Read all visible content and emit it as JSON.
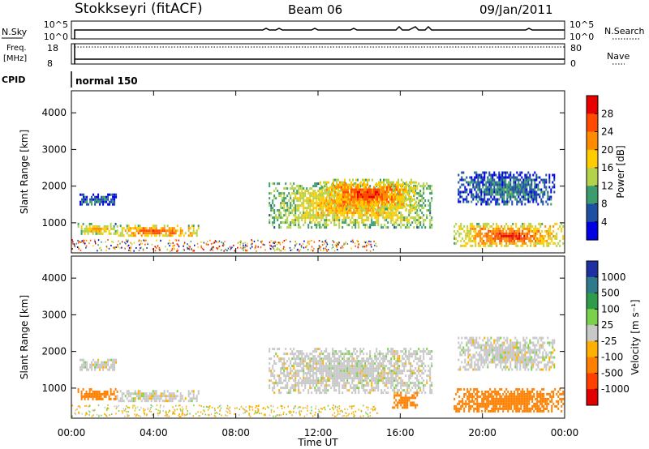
{
  "header": {
    "station": "Stokkseyri (fitACF)",
    "beam": "Beam 06",
    "date": "09/Jan/2011"
  },
  "status": {
    "nsky_label": "N.Sky",
    "nsky_ticks": [
      "10^5",
      "10^0"
    ],
    "nsearch_label": "N.Search",
    "nsearch_ticks": [
      "10^5",
      "10^0"
    ],
    "freq_label_1": "Freq.",
    "freq_label_2": "[MHz]",
    "freq_ticks": [
      "18",
      "8"
    ],
    "nave_label": "Nave",
    "nave_ticks": [
      "80",
      "0"
    ],
    "cpid_label": "CPID",
    "cpid_value": "normal 150"
  },
  "chart_data": [
    {
      "type": "heatmap",
      "name": "power",
      "ylabel": "Slant Range [km]",
      "xlabel": "Time UT",
      "xlim": [
        0,
        24
      ],
      "ylim": [
        180,
        4600
      ],
      "yticks": [
        "1000",
        "2000",
        "3000",
        "4000"
      ],
      "xticks": [
        "00:00",
        "04:00",
        "08:00",
        "12:00",
        "16:00",
        "20:00",
        "00:00"
      ],
      "colorbar_label": "Power [dB]",
      "colorbar_ticks": [
        "28",
        "24",
        "20",
        "16",
        "12",
        "8",
        "4"
      ],
      "colorbar_colors": [
        "#e60000",
        "#ff4a00",
        "#ff8c00",
        "#ffcc00",
        "#b4d24a",
        "#3c9c6e",
        "#1e4fa0",
        "#0000e0"
      ],
      "echo_regions": [
        {
          "t": [
            0.3,
            2.2
          ],
          "r": [
            700,
            1000
          ],
          "level": 20
        },
        {
          "t": [
            0.4,
            2.2
          ],
          "r": [
            1500,
            1800
          ],
          "level": 8
        },
        {
          "t": [
            2.2,
            6.2
          ],
          "r": [
            650,
            950
          ],
          "level": 26
        },
        {
          "t": [
            9.6,
            17.5
          ],
          "r": [
            900,
            2100
          ],
          "level": 20
        },
        {
          "t": [
            12.0,
            16.8
          ],
          "r": [
            1400,
            2200
          ],
          "level": 26
        },
        {
          "t": [
            18.6,
            23.9
          ],
          "r": [
            350,
            1000
          ],
          "level": 26
        },
        {
          "t": [
            18.8,
            23.5
          ],
          "r": [
            1500,
            2400
          ],
          "level": 8
        }
      ]
    },
    {
      "type": "heatmap",
      "name": "velocity",
      "ylabel": "Slant Range [km]",
      "xlabel": "Time UT",
      "xlim": [
        0,
        24
      ],
      "ylim": [
        180,
        4600
      ],
      "yticks": [
        "1000",
        "2000",
        "3000",
        "4000"
      ],
      "xticks": [
        "00:00",
        "04:00",
        "08:00",
        "12:00",
        "16:00",
        "20:00",
        "00:00"
      ],
      "colorbar_label": "Velocity [m s⁻¹]",
      "colorbar_ticks": [
        "1000",
        "500",
        "100",
        "25",
        "-25",
        "-100",
        "-500",
        "-1000"
      ],
      "colorbar_colors": [
        "#1e2fa0",
        "#2e7a8a",
        "#2e9c4a",
        "#7ad24a",
        "#c8c8c8",
        "#ffb000",
        "#ff8000",
        "#ff4000",
        "#e00000"
      ],
      "echo_regions": [
        {
          "t": [
            0.3,
            2.2
          ],
          "r": [
            700,
            1000
          ],
          "velocity": -200
        },
        {
          "t": [
            0.4,
            2.2
          ],
          "r": [
            1500,
            1800
          ],
          "velocity": 0
        },
        {
          "t": [
            2.2,
            6.2
          ],
          "r": [
            650,
            950
          ],
          "velocity": 0
        },
        {
          "t": [
            9.6,
            17.5
          ],
          "r": [
            900,
            2100
          ],
          "velocity": 0
        },
        {
          "t": [
            15.6,
            16.8
          ],
          "r": [
            500,
            900
          ],
          "velocity": -300
        },
        {
          "t": [
            18.6,
            23.9
          ],
          "r": [
            350,
            1000
          ],
          "velocity": -300
        },
        {
          "t": [
            18.8,
            23.5
          ],
          "r": [
            1500,
            2400
          ],
          "velocity": 0
        }
      ]
    }
  ],
  "colors": {
    "grey": "#c8c8c8",
    "axis": "#000000"
  }
}
